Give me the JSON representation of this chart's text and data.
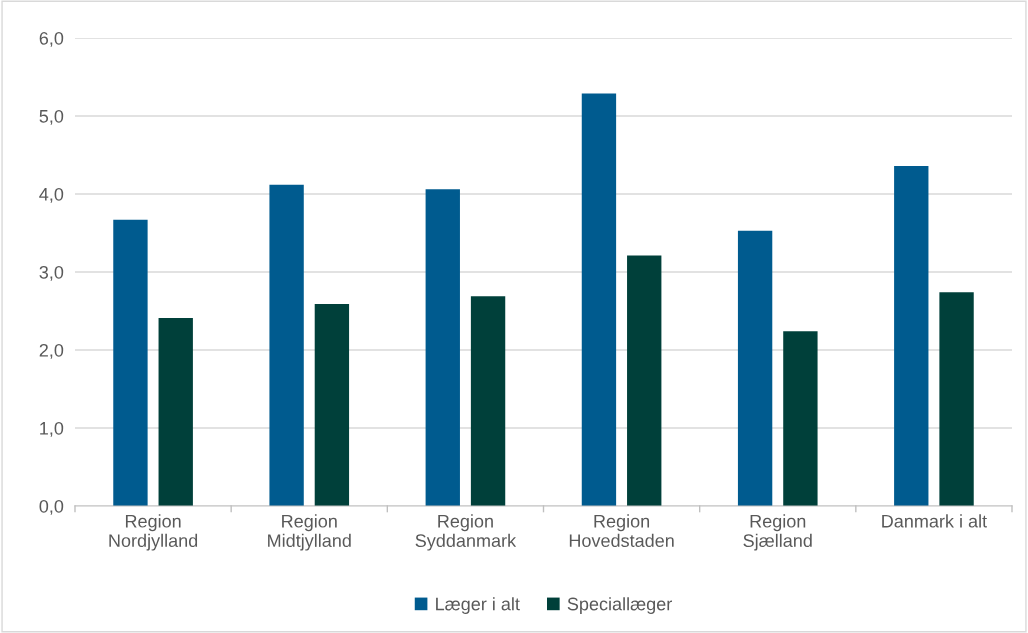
{
  "chart_data": {
    "type": "bar",
    "categories": [
      "Region\nNordjylland",
      "Region\nMidtjylland",
      "Region\nSyddanmark",
      "Region\nHovedstaden",
      "Region\nSjælland",
      "Danmark i alt"
    ],
    "series": [
      {
        "name": "Læger i alt",
        "color": "#005b8f",
        "values": [
          3.67,
          4.12,
          4.06,
          5.29,
          3.53,
          4.36
        ]
      },
      {
        "name": "Speciallæger",
        "color": "#00403a",
        "values": [
          2.41,
          2.59,
          2.69,
          3.21,
          2.24,
          2.74
        ]
      }
    ],
    "ylim": [
      0,
      6
    ],
    "yticks": [
      {
        "value": 0,
        "label": "0,0"
      },
      {
        "value": 1,
        "label": "1,0"
      },
      {
        "value": 2,
        "label": "2,0"
      },
      {
        "value": 3,
        "label": "3,0"
      },
      {
        "value": 4,
        "label": "4,0"
      },
      {
        "value": 5,
        "label": "5,0"
      },
      {
        "value": 6,
        "label": "6,0"
      }
    ],
    "grid": "y",
    "legend": "bottom"
  }
}
